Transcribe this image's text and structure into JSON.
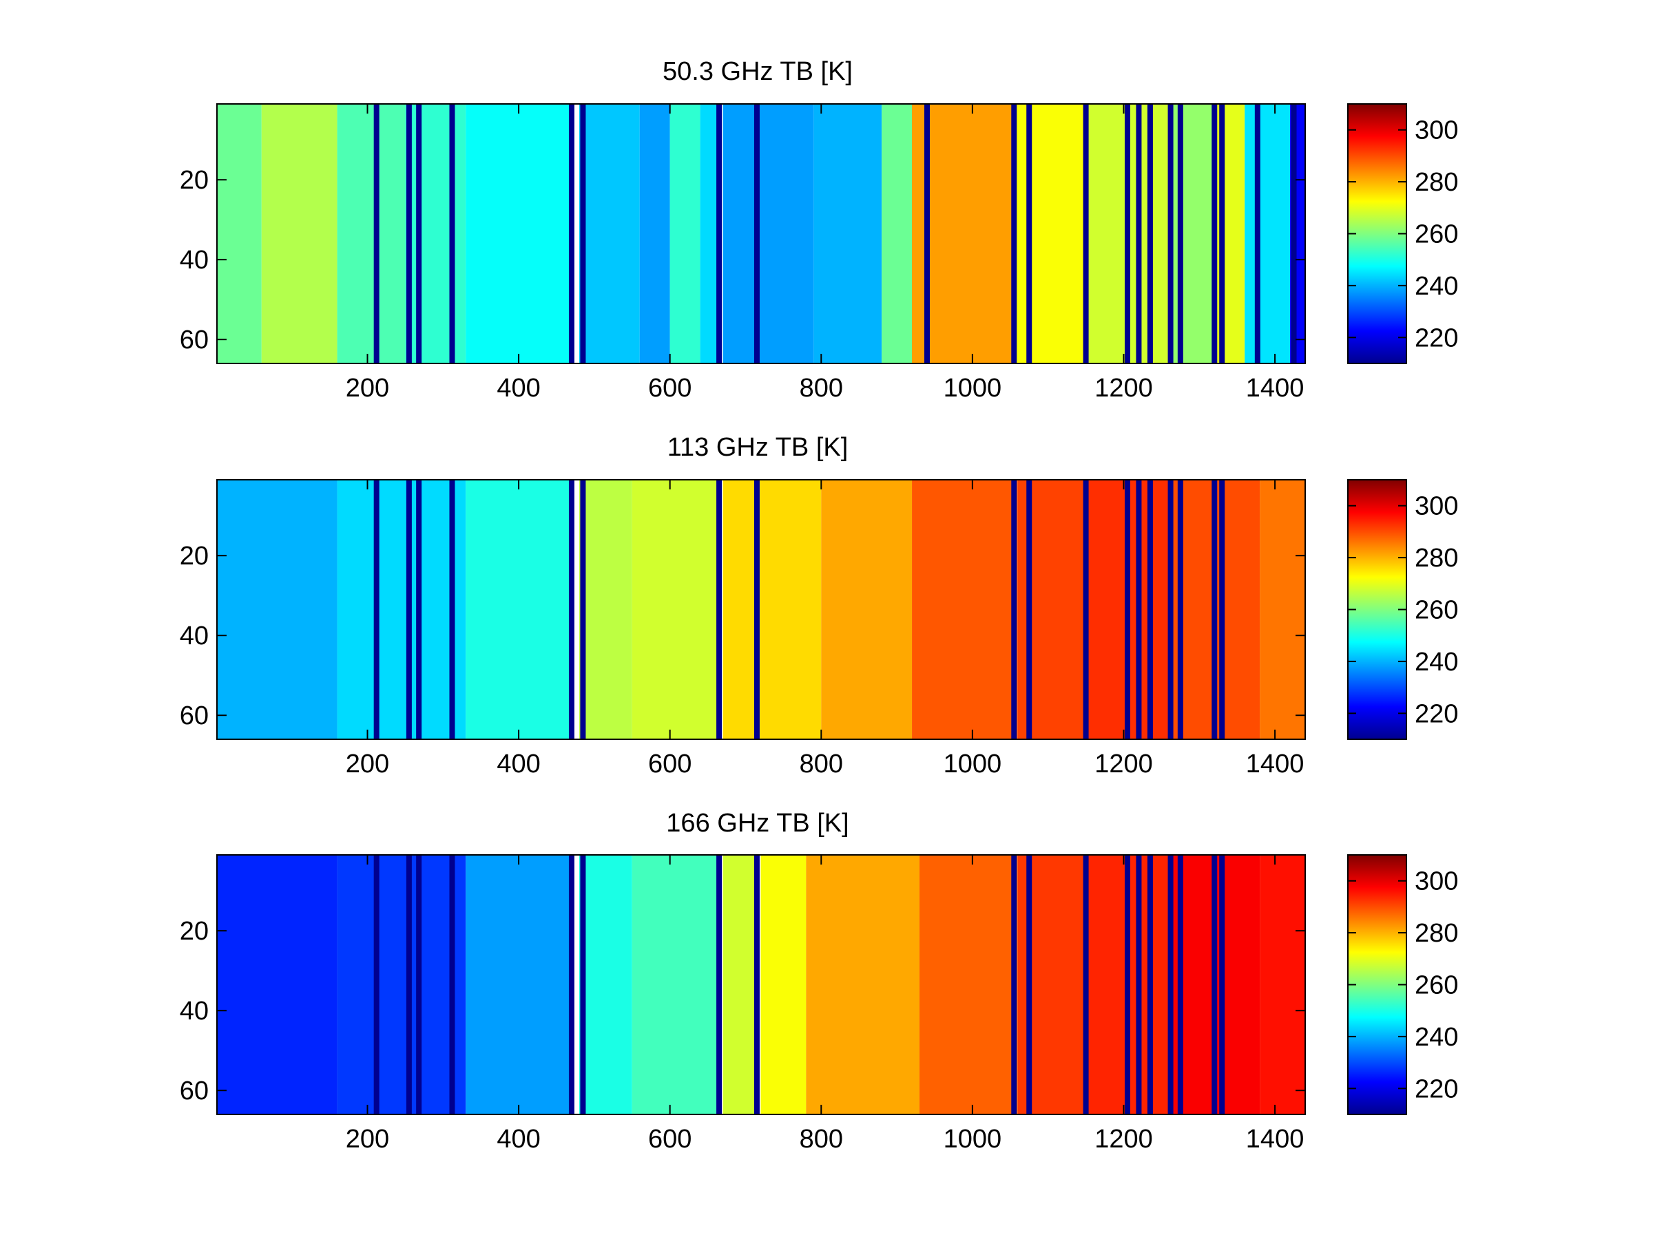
{
  "chart_data": [
    {
      "type": "heatmap",
      "title": "50.3 GHz TB [K]",
      "xlabel": "",
      "ylabel": "",
      "xlim": [
        1,
        1440
      ],
      "ylim": [
        66,
        1
      ],
      "x_ticks": [
        200,
        400,
        600,
        800,
        1000,
        1200,
        1400
      ],
      "y_ticks": [
        20,
        40,
        60
      ],
      "colorbar": {
        "min": 210,
        "max": 310,
        "ticks": [
          220,
          240,
          260,
          280,
          300
        ],
        "colormap": "jet"
      },
      "gap_columns_x": [
        212,
        255,
        268,
        312,
        470,
        485,
        665,
        715,
        940,
        1055,
        1075,
        1150,
        1205,
        1220,
        1235,
        1262,
        1275,
        1320,
        1330,
        1377,
        1425
      ],
      "column_segments": [
        {
          "x": [
            1,
            60
          ],
          "value": 258
        },
        {
          "x": [
            60,
            160
          ],
          "value": 265
        },
        {
          "x": [
            160,
            250
          ],
          "value": 255
        },
        {
          "x": [
            250,
            330
          ],
          "value": 252
        },
        {
          "x": [
            330,
            470
          ],
          "value": 248
        },
        {
          "x": [
            480,
            560
          ],
          "value": 242
        },
        {
          "x": [
            560,
            600
          ],
          "value": 238
        },
        {
          "x": [
            600,
            640
          ],
          "value": 252
        },
        {
          "x": [
            640,
            665
          ],
          "value": 244
        },
        {
          "x": [
            670,
            790
          ],
          "value": 238
        },
        {
          "x": [
            790,
            880
          ],
          "value": 240
        },
        {
          "x": [
            880,
            920
          ],
          "value": 258
        },
        {
          "x": [
            920,
            1055
          ],
          "value": 282
        },
        {
          "x": [
            1055,
            1150
          ],
          "value": 272
        },
        {
          "x": [
            1150,
            1260
          ],
          "value": 268
        },
        {
          "x": [
            1260,
            1320
          ],
          "value": 262
        },
        {
          "x": [
            1320,
            1360
          ],
          "value": 270
        },
        {
          "x": [
            1360,
            1420
          ],
          "value": 245
        },
        {
          "x": [
            1420,
            1440
          ],
          "value": 222
        }
      ]
    },
    {
      "type": "heatmap",
      "title": "113 GHz TB [K]",
      "xlabel": "",
      "ylabel": "",
      "xlim": [
        1,
        1440
      ],
      "ylim": [
        66,
        1
      ],
      "x_ticks": [
        200,
        400,
        600,
        800,
        1000,
        1200,
        1400
      ],
      "y_ticks": [
        20,
        40,
        60
      ],
      "colorbar": {
        "min": 210,
        "max": 310,
        "ticks": [
          220,
          240,
          260,
          280,
          300
        ],
        "colormap": "jet"
      },
      "gap_columns_x": [
        212,
        255,
        268,
        312,
        470,
        485,
        665,
        715,
        1055,
        1075,
        1150,
        1205,
        1220,
        1235,
        1262,
        1275,
        1320,
        1330
      ],
      "column_segments": [
        {
          "x": [
            1,
            160
          ],
          "value": 240
        },
        {
          "x": [
            160,
            330
          ],
          "value": 244
        },
        {
          "x": [
            330,
            470
          ],
          "value": 250
        },
        {
          "x": [
            480,
            550
          ],
          "value": 266
        },
        {
          "x": [
            550,
            665
          ],
          "value": 268
        },
        {
          "x": [
            670,
            800
          ],
          "value": 276
        },
        {
          "x": [
            800,
            920
          ],
          "value": 281
        },
        {
          "x": [
            920,
            1060
          ],
          "value": 289
        },
        {
          "x": [
            1060,
            1150
          ],
          "value": 291
        },
        {
          "x": [
            1150,
            1260
          ],
          "value": 293
        },
        {
          "x": [
            1260,
            1380
          ],
          "value": 290
        },
        {
          "x": [
            1380,
            1440
          ],
          "value": 286
        }
      ]
    },
    {
      "type": "heatmap",
      "title": "166 GHz TB [K]",
      "xlabel": "",
      "ylabel": "",
      "xlim": [
        1,
        1440
      ],
      "ylim": [
        66,
        1
      ],
      "x_ticks": [
        200,
        400,
        600,
        800,
        1000,
        1200,
        1400
      ],
      "y_ticks": [
        20,
        40,
        60
      ],
      "colorbar": {
        "min": 210,
        "max": 310,
        "ticks": [
          220,
          240,
          260,
          280,
          300
        ],
        "colormap": "jet"
      },
      "gap_columns_x": [
        212,
        255,
        268,
        312,
        470,
        485,
        665,
        715,
        1055,
        1075,
        1150,
        1205,
        1220,
        1235,
        1262,
        1275,
        1320,
        1330
      ],
      "column_segments": [
        {
          "x": [
            1,
            160
          ],
          "value": 226
        },
        {
          "x": [
            160,
            330
          ],
          "value": 228
        },
        {
          "x": [
            330,
            470
          ],
          "value": 238
        },
        {
          "x": [
            480,
            550
          ],
          "value": 250
        },
        {
          "x": [
            550,
            665
          ],
          "value": 254
        },
        {
          "x": [
            670,
            715
          ],
          "value": 268
        },
        {
          "x": [
            720,
            780
          ],
          "value": 272
        },
        {
          "x": [
            780,
            930
          ],
          "value": 281
        },
        {
          "x": [
            930,
            1060
          ],
          "value": 288
        },
        {
          "x": [
            1060,
            1150
          ],
          "value": 292
        },
        {
          "x": [
            1150,
            1260
          ],
          "value": 294
        },
        {
          "x": [
            1260,
            1380
          ],
          "value": 298
        },
        {
          "x": [
            1380,
            1440
          ],
          "value": 296
        }
      ]
    }
  ]
}
